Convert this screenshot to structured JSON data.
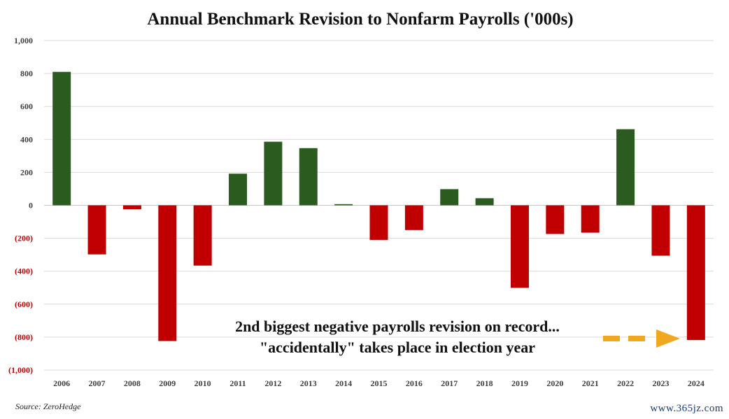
{
  "chart_data": {
    "type": "bar",
    "title": "Annual Benchmark Revision to Nonfarm Payrolls ('000s)",
    "categories": [
      "2006",
      "2007",
      "2008",
      "2009",
      "2010",
      "2011",
      "2012",
      "2013",
      "2014",
      "2015",
      "2016",
      "2017",
      "2018",
      "2019",
      "2020",
      "2021",
      "2022",
      "2023",
      "2024"
    ],
    "values": [
      810,
      -298,
      -24,
      -824,
      -366,
      192,
      386,
      347,
      7,
      -210,
      -150,
      98,
      43,
      -501,
      -174,
      -166,
      462,
      -306,
      -818
    ],
    "ylim": [
      -1000,
      1000
    ],
    "yticks": [
      1000,
      800,
      600,
      400,
      200,
      0,
      -200,
      -400,
      -600,
      -800,
      -1000
    ],
    "ytick_labels": [
      "1,000",
      "800",
      "600",
      "400",
      "200",
      "0",
      "(200)",
      "(400)",
      "(600)",
      "(800)",
      "(1,000)"
    ],
    "grid": true,
    "colors": {
      "positive": "#2b5b1f",
      "negative": "#c00000",
      "negative_label": "#c00000",
      "positive_label": "#404040"
    },
    "annotation": {
      "line1": "2nd  biggest negative payrolls revision on record...",
      "line2": "\"accidentally\" takes place in election year",
      "arrow_color": "#f0a820"
    }
  },
  "source": "Source: ZeroHedge",
  "watermark": "www.365jz.com"
}
